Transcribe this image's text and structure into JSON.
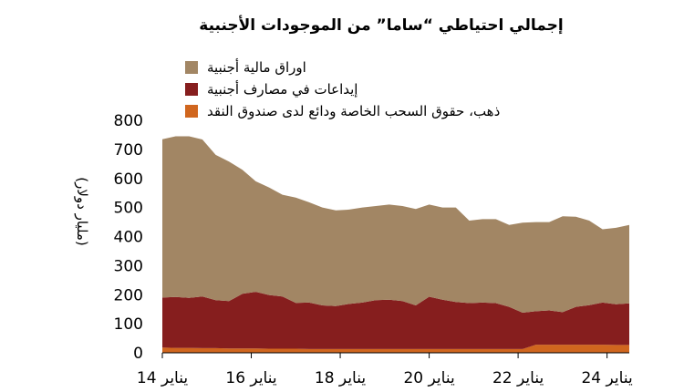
{
  "chart_data": {
    "type": "area",
    "stacked": true,
    "title": "إجمالي احتياطي “ساما” من الموجودات الأجنبية",
    "ylabel": "(مليار دولار)",
    "ylim": [
      0,
      800
    ],
    "yticks": [
      0,
      100,
      200,
      300,
      400,
      500,
      600,
      700,
      800
    ],
    "xlim": [
      2014,
      2024.5
    ],
    "xticks": [
      {
        "value": 2014,
        "label": "يناير 14"
      },
      {
        "value": 2016,
        "label": "يناير 16"
      },
      {
        "value": 2018,
        "label": "يناير 18"
      },
      {
        "value": 2020,
        "label": "يناير 20"
      },
      {
        "value": 2022,
        "label": "يناير 22"
      },
      {
        "value": 2024,
        "label": "يناير 24"
      }
    ],
    "grid": false,
    "legend_position": "top",
    "x": [
      2014.0,
      2014.3,
      2014.6,
      2014.9,
      2015.2,
      2015.5,
      2015.8,
      2016.1,
      2016.4,
      2016.7,
      2017.0,
      2017.3,
      2017.6,
      2017.9,
      2018.2,
      2018.5,
      2018.8,
      2019.1,
      2019.4,
      2019.7,
      2020.0,
      2020.3,
      2020.6,
      2020.9,
      2021.2,
      2021.5,
      2021.8,
      2022.1,
      2022.4,
      2022.7,
      2023.0,
      2023.3,
      2023.6,
      2023.9,
      2024.2,
      2024.5
    ],
    "series": [
      {
        "name": "ذهب، حقوق السحب الخاصة ودائع لدى صندوق النقد",
        "color": "#D0661E",
        "values": [
          18,
          17,
          17,
          16,
          16,
          15,
          15,
          15,
          14,
          14,
          14,
          13,
          13,
          13,
          13,
          13,
          13,
          13,
          13,
          13,
          13,
          13,
          13,
          13,
          13,
          13,
          13,
          13,
          28,
          28,
          28,
          28,
          28,
          28,
          27,
          27
        ]
      },
      {
        "name": "إيداعات في مصارف أجنبية",
        "color": "#861E1E",
        "values": [
          172,
          175,
          172,
          178,
          165,
          163,
          188,
          195,
          185,
          180,
          158,
          160,
          150,
          148,
          155,
          160,
          168,
          170,
          165,
          150,
          180,
          170,
          162,
          158,
          160,
          158,
          145,
          125,
          115,
          118,
          112,
          130,
          136,
          145,
          140,
          143
        ]
      },
      {
        "name": "اوراق مالية أجنبية",
        "color": "#A28664",
        "values": [
          545,
          553,
          556,
          540,
          500,
          480,
          427,
          380,
          370,
          350,
          362,
          345,
          337,
          329,
          325,
          327,
          324,
          327,
          327,
          332,
          317,
          317,
          325,
          284,
          287,
          289,
          282,
          310,
          307,
          304,
          330,
          310,
          291,
          252,
          263,
          270
        ]
      }
    ]
  }
}
